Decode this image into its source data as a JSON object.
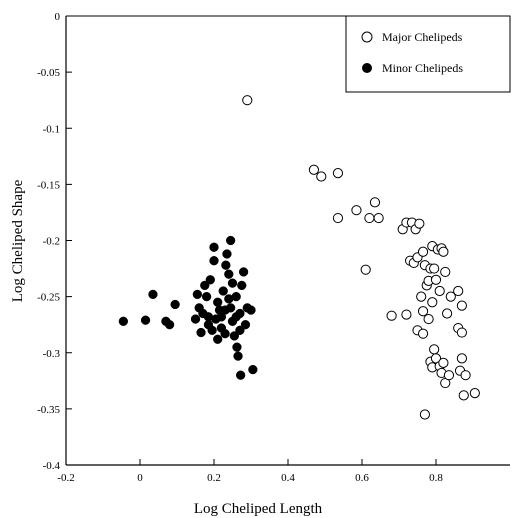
{
  "chart_data": {
    "type": "scatter",
    "xlabel": "Log Cheliped Length",
    "ylabel": "Log Cheliped Shape",
    "xlim": [
      -0.2,
      1.0
    ],
    "ylim": [
      -0.4,
      0
    ],
    "x_ticks": [
      -0.2,
      0,
      0.2,
      0.4,
      0.6,
      0.8
    ],
    "y_ticks": [
      0,
      -0.05,
      -0.1,
      -0.15,
      -0.2,
      -0.25,
      -0.3,
      -0.35,
      -0.4
    ],
    "x_tick_labels": [
      "-0.2",
      "0",
      "0.2",
      "0.4",
      "0.6",
      "0.8"
    ],
    "y_tick_labels": [
      "0",
      "-0.05",
      "-0.1",
      "-0.15",
      "-0.2",
      "-0.25",
      "-0.3",
      "-0.35",
      "-0.4"
    ],
    "grid": false,
    "legend_position": "top-right",
    "series": [
      {
        "name": "Major Chelipeds",
        "marker": "open-circle",
        "points": [
          [
            0.29,
            -0.075
          ],
          [
            0.47,
            -0.137
          ],
          [
            0.49,
            -0.143
          ],
          [
            0.535,
            -0.14
          ],
          [
            0.535,
            -0.18
          ],
          [
            0.585,
            -0.173
          ],
          [
            0.62,
            -0.18
          ],
          [
            0.635,
            -0.166
          ],
          [
            0.645,
            -0.18
          ],
          [
            0.61,
            -0.226
          ],
          [
            0.68,
            -0.267
          ],
          [
            0.71,
            -0.19
          ],
          [
            0.72,
            -0.184
          ],
          [
            0.73,
            -0.218
          ],
          [
            0.735,
            -0.184
          ],
          [
            0.74,
            -0.22
          ],
          [
            0.745,
            -0.19
          ],
          [
            0.75,
            -0.215
          ],
          [
            0.755,
            -0.185
          ],
          [
            0.76,
            -0.25
          ],
          [
            0.765,
            -0.263
          ],
          [
            0.765,
            -0.21
          ],
          [
            0.77,
            -0.222
          ],
          [
            0.775,
            -0.24
          ],
          [
            0.78,
            -0.236
          ],
          [
            0.785,
            -0.225
          ],
          [
            0.79,
            -0.205
          ],
          [
            0.79,
            -0.255
          ],
          [
            0.795,
            -0.225
          ],
          [
            0.8,
            -0.235
          ],
          [
            0.805,
            -0.208
          ],
          [
            0.81,
            -0.245
          ],
          [
            0.815,
            -0.207
          ],
          [
            0.82,
            -0.21
          ],
          [
            0.825,
            -0.228
          ],
          [
            0.83,
            -0.265
          ],
          [
            0.84,
            -0.25
          ],
          [
            0.86,
            -0.245
          ],
          [
            0.87,
            -0.258
          ],
          [
            0.72,
            -0.266
          ],
          [
            0.75,
            -0.28
          ],
          [
            0.765,
            -0.283
          ],
          [
            0.78,
            -0.27
          ],
          [
            0.785,
            -0.308
          ],
          [
            0.79,
            -0.313
          ],
          [
            0.795,
            -0.297
          ],
          [
            0.8,
            -0.305
          ],
          [
            0.81,
            -0.312
          ],
          [
            0.815,
            -0.318
          ],
          [
            0.82,
            -0.309
          ],
          [
            0.825,
            -0.327
          ],
          [
            0.835,
            -0.32
          ],
          [
            0.86,
            -0.278
          ],
          [
            0.87,
            -0.282
          ],
          [
            0.87,
            -0.305
          ],
          [
            0.865,
            -0.316
          ],
          [
            0.875,
            -0.338
          ],
          [
            0.88,
            -0.32
          ],
          [
            0.905,
            -0.336
          ],
          [
            0.77,
            -0.355
          ]
        ]
      },
      {
        "name": "Minor Chelipeds",
        "marker": "filled-circle",
        "points": [
          [
            -0.045,
            -0.272
          ],
          [
            0.015,
            -0.271
          ],
          [
            0.035,
            -0.248
          ],
          [
            0.07,
            -0.272
          ],
          [
            0.08,
            -0.275
          ],
          [
            0.095,
            -0.257
          ],
          [
            0.15,
            -0.27
          ],
          [
            0.155,
            -0.248
          ],
          [
            0.16,
            -0.26
          ],
          [
            0.165,
            -0.282
          ],
          [
            0.17,
            -0.265
          ],
          [
            0.175,
            -0.24
          ],
          [
            0.18,
            -0.25
          ],
          [
            0.185,
            -0.275
          ],
          [
            0.19,
            -0.235
          ],
          [
            0.195,
            -0.28
          ],
          [
            0.2,
            -0.206
          ],
          [
            0.2,
            -0.218
          ],
          [
            0.205,
            -0.27
          ],
          [
            0.21,
            -0.288
          ],
          [
            0.21,
            -0.255
          ],
          [
            0.215,
            -0.262
          ],
          [
            0.22,
            -0.278
          ],
          [
            0.225,
            -0.245
          ],
          [
            0.23,
            -0.283
          ],
          [
            0.232,
            -0.222
          ],
          [
            0.235,
            -0.212
          ],
          [
            0.24,
            -0.252
          ],
          [
            0.24,
            -0.23
          ],
          [
            0.245,
            -0.2
          ],
          [
            0.245,
            -0.26
          ],
          [
            0.25,
            -0.272
          ],
          [
            0.25,
            -0.238
          ],
          [
            0.255,
            -0.285
          ],
          [
            0.26,
            -0.268
          ],
          [
            0.26,
            -0.25
          ],
          [
            0.262,
            -0.295
          ],
          [
            0.265,
            -0.303
          ],
          [
            0.27,
            -0.28
          ],
          [
            0.27,
            -0.265
          ],
          [
            0.272,
            -0.32
          ],
          [
            0.275,
            -0.24
          ],
          [
            0.28,
            -0.228
          ],
          [
            0.285,
            -0.275
          ],
          [
            0.29,
            -0.26
          ],
          [
            0.3,
            -0.262
          ],
          [
            0.305,
            -0.315
          ],
          [
            0.22,
            -0.268
          ],
          [
            0.23,
            -0.262
          ],
          [
            0.185,
            -0.268
          ]
        ]
      }
    ]
  }
}
